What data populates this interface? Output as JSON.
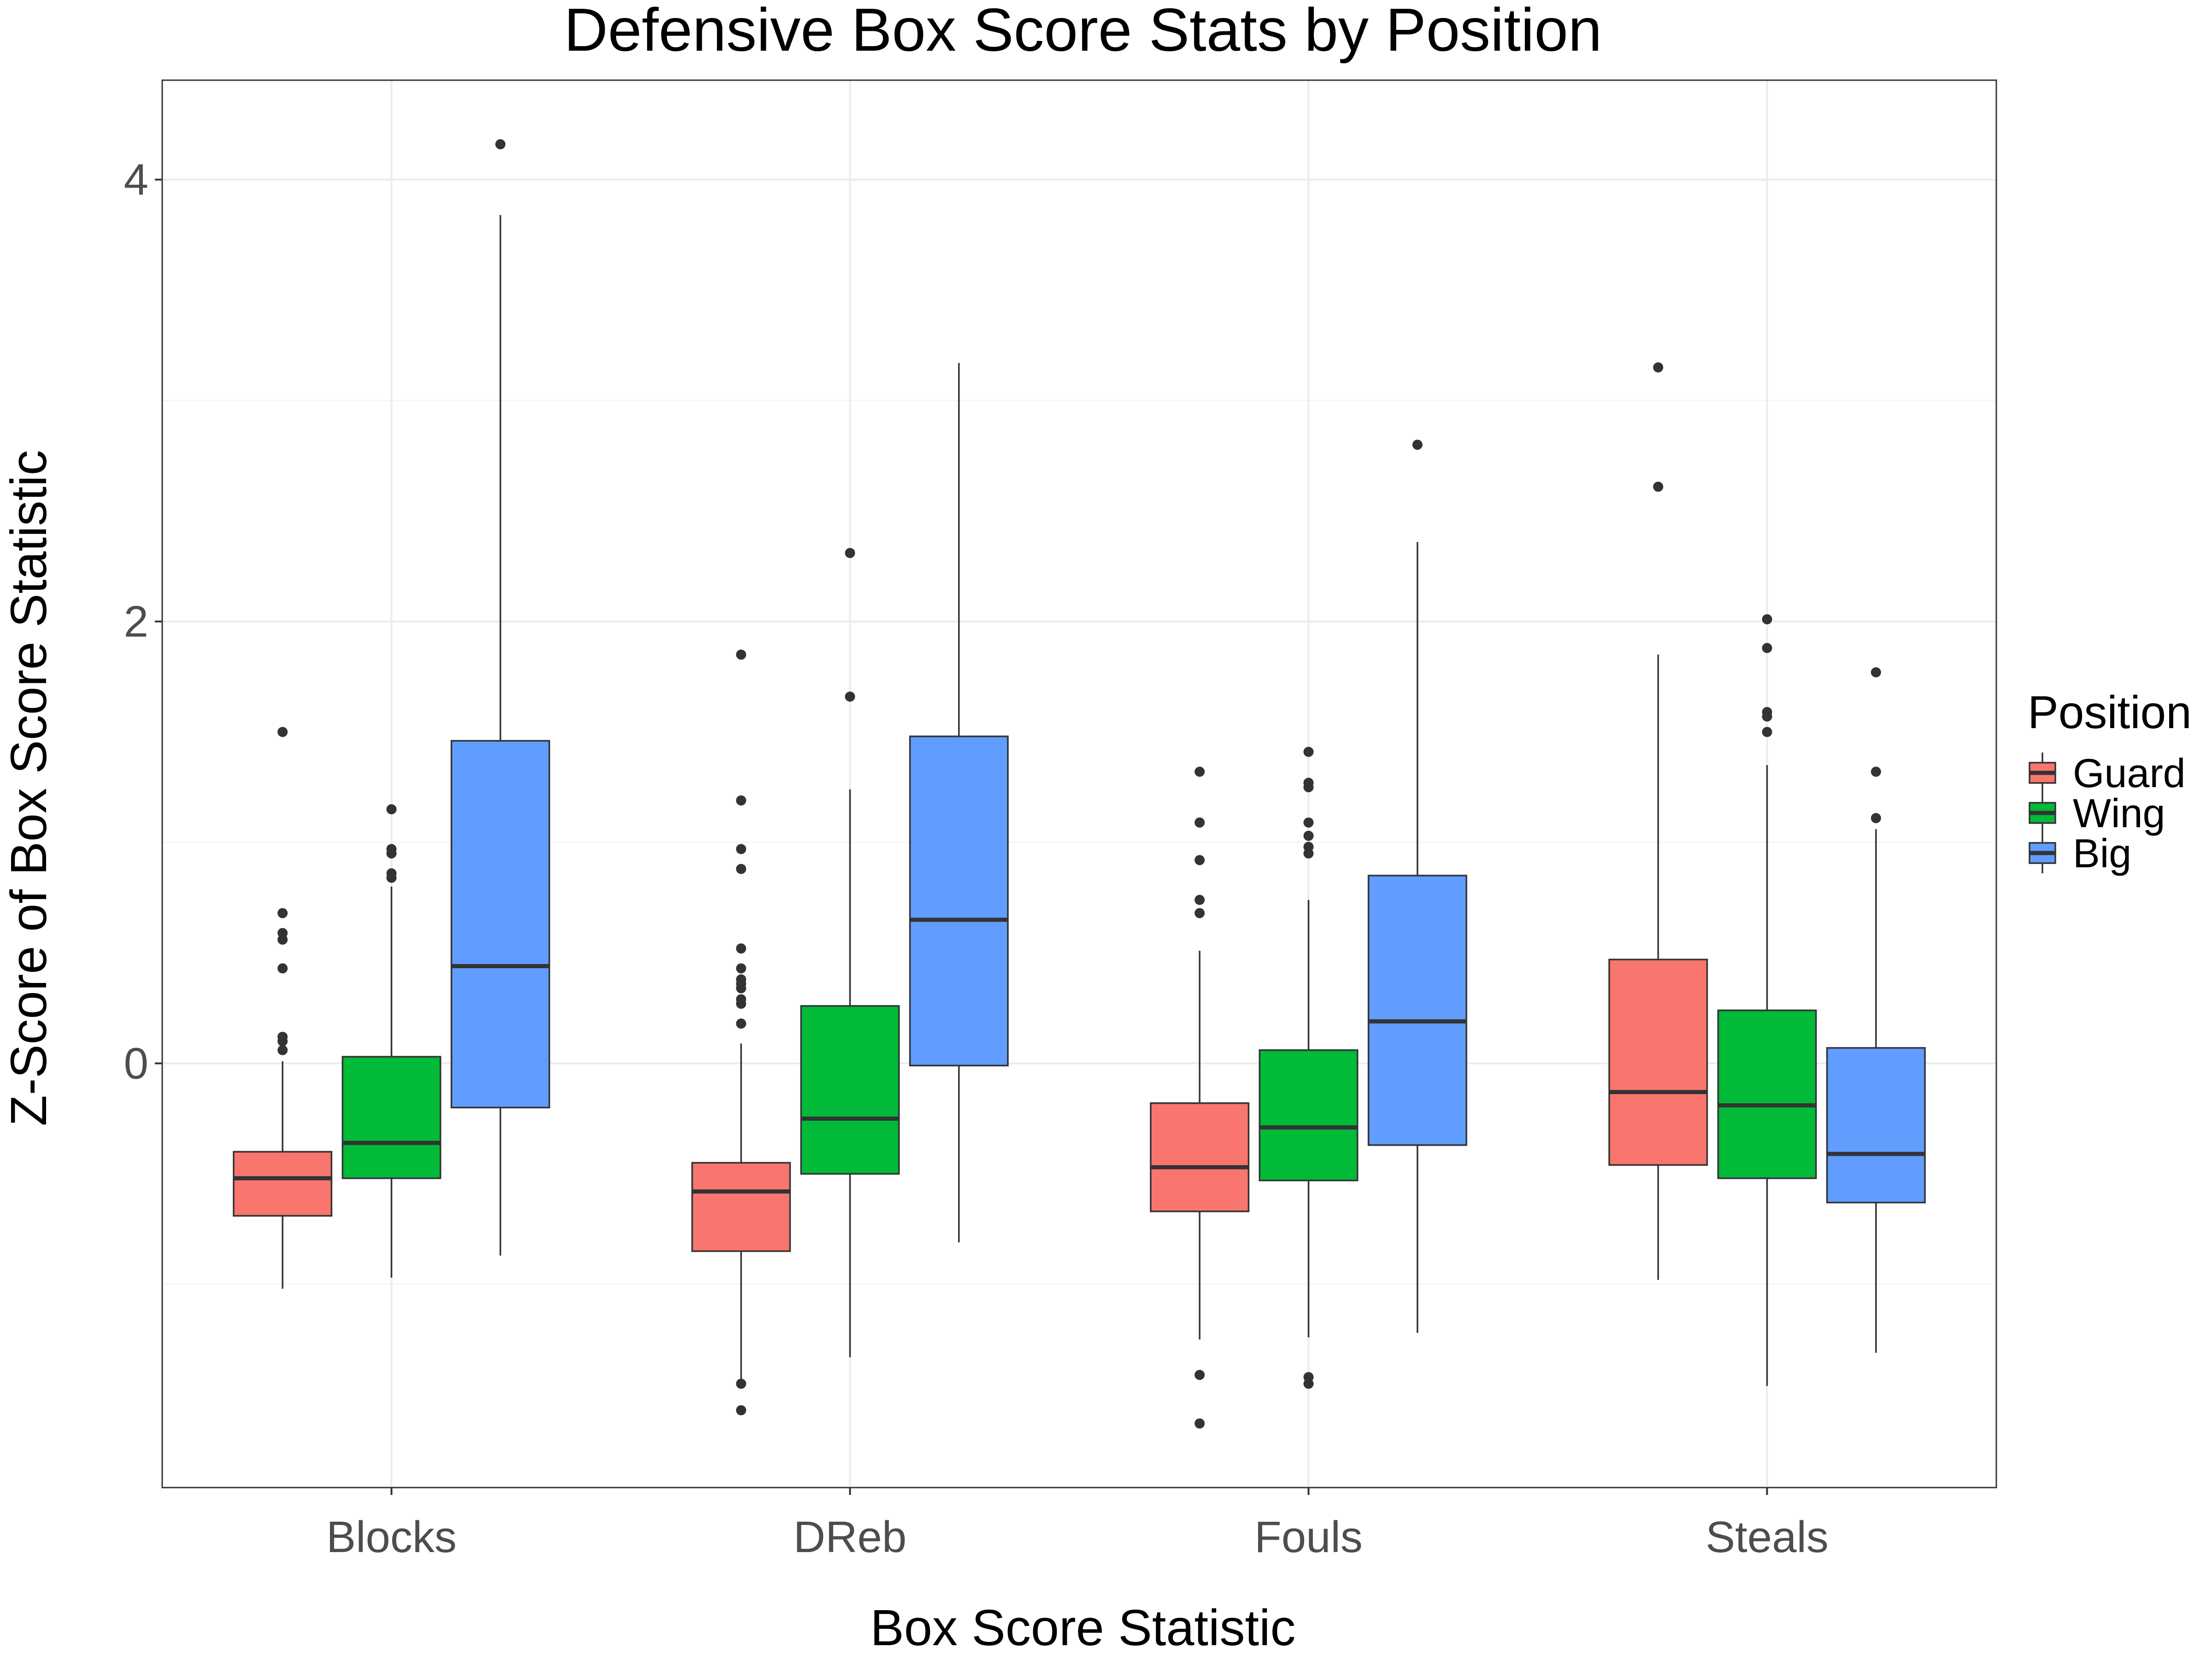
{
  "chart_data": {
    "type": "box",
    "title": "Defensive Box Score Stats by Position",
    "xlabel": "Box Score Statistic",
    "ylabel": "Z-Score of Box Score Statistic",
    "categories": [
      "Blocks",
      "DReb",
      "Fouls",
      "Steals"
    ],
    "ylim": [
      -1.92,
      4.45
    ],
    "yticks": [
      0,
      2,
      4
    ],
    "yminor": [
      -1,
      1,
      3
    ],
    "grid": true,
    "legend": {
      "title": "Position",
      "placement": "right",
      "entries": [
        {
          "name": "Guard",
          "color": "#F8766D"
        },
        {
          "name": "Wing",
          "color": "#00BA38"
        },
        {
          "name": "Big",
          "color": "#619CFF"
        }
      ]
    },
    "series": [
      {
        "name": "Guard",
        "color": "#F8766D",
        "boxes": [
          {
            "low": -1.02,
            "q1": -0.69,
            "median": -0.52,
            "q3": -0.4,
            "high": 0.01,
            "outliers": [
              1.5,
              0.68,
              0.59,
              0.56,
              0.43,
              0.12,
              0.1,
              0.06
            ]
          },
          {
            "low": -1.45,
            "q1": -0.85,
            "median": -0.58,
            "q3": -0.45,
            "high": 0.09,
            "outliers": [
              1.85,
              1.19,
              0.97,
              0.88,
              0.52,
              0.43,
              0.38,
              0.36,
              0.34,
              0.29,
              0.27,
              0.18,
              -1.45,
              -1.57
            ]
          },
          {
            "low": -1.25,
            "q1": -0.67,
            "median": -0.47,
            "q3": -0.18,
            "high": 0.51,
            "outliers": [
              1.32,
              1.09,
              0.92,
              0.74,
              0.68,
              -1.41,
              -1.63
            ]
          },
          {
            "low": -0.98,
            "q1": -0.46,
            "median": -0.13,
            "q3": 0.47,
            "high": 1.85,
            "outliers": [
              3.15,
              2.61
            ]
          }
        ]
      },
      {
        "name": "Wing",
        "color": "#00BA38",
        "boxes": [
          {
            "low": -0.97,
            "q1": -0.52,
            "median": -0.36,
            "q3": 0.03,
            "high": 0.8,
            "outliers": [
              1.15,
              0.97,
              0.95,
              0.86,
              0.84
            ]
          },
          {
            "low": -1.33,
            "q1": -0.5,
            "median": -0.25,
            "q3": 0.26,
            "high": 1.24,
            "outliers": [
              2.31,
              1.66
            ]
          },
          {
            "low": -1.24,
            "q1": -0.53,
            "median": -0.29,
            "q3": 0.06,
            "high": 0.74,
            "outliers": [
              1.41,
              1.27,
              1.25,
              1.09,
              1.03,
              0.98,
              0.95,
              -1.42,
              -1.45
            ]
          },
          {
            "low": -1.46,
            "q1": -0.52,
            "median": -0.19,
            "q3": 0.24,
            "high": 1.35,
            "outliers": [
              2.01,
              1.88,
              1.59,
              1.57,
              1.5
            ]
          }
        ]
      },
      {
        "name": "Big",
        "color": "#619CFF",
        "boxes": [
          {
            "low": -0.87,
            "q1": -0.2,
            "median": 0.44,
            "q3": 1.46,
            "high": 3.84,
            "outliers": [
              4.16
            ]
          },
          {
            "low": -0.81,
            "q1": -0.01,
            "median": 0.65,
            "q3": 1.48,
            "high": 3.17,
            "outliers": []
          },
          {
            "low": -1.22,
            "q1": -0.37,
            "median": 0.19,
            "q3": 0.85,
            "high": 2.36,
            "outliers": [
              2.8
            ]
          },
          {
            "low": -1.31,
            "q1": -0.63,
            "median": -0.41,
            "q3": 0.07,
            "high": 1.06,
            "outliers": [
              1.77,
              1.32,
              1.11
            ]
          }
        ]
      }
    ]
  }
}
